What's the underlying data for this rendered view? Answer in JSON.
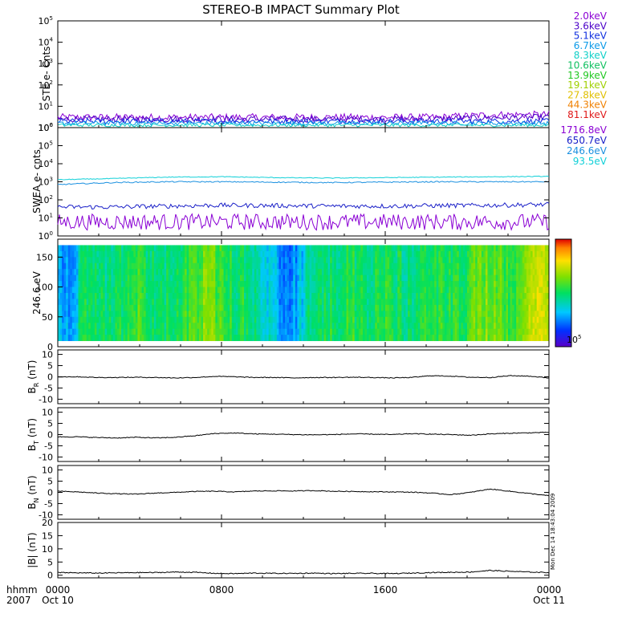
{
  "title": "STEREO-B IMPACT Summary Plot",
  "footer": {
    "hhmm_label": "hhmm",
    "year_label": "2007",
    "tick_times": [
      "0000",
      "0800",
      "1600",
      "0000"
    ],
    "tick_dates": [
      "Oct 10",
      "",
      "",
      "Oct 11"
    ]
  },
  "stamp": "Mon Dec 14 18:43:04 2009",
  "panels": {
    "ste": {
      "ylabel": "STE e- Cnts",
      "ticks": [
        {
          "base": "10",
          "exp": "0"
        },
        {
          "base": "10",
          "exp": "1"
        },
        {
          "base": "10",
          "exp": "2"
        },
        {
          "base": "10",
          "exp": "3"
        },
        {
          "base": "10",
          "exp": "4"
        },
        {
          "base": "10",
          "exp": "5"
        }
      ],
      "legend": [
        {
          "label": "2.0keV",
          "color": "#8a00d4"
        },
        {
          "label": "3.6keV",
          "color": "#4b00c8"
        },
        {
          "label": "5.1keV",
          "color": "#1030e0"
        },
        {
          "label": "6.7keV",
          "color": "#0b9ae8"
        },
        {
          "label": "8.3keV",
          "color": "#10d0c8"
        },
        {
          "label": "10.6keV",
          "color": "#10c060"
        },
        {
          "label": "13.9keV",
          "color": "#20c820"
        },
        {
          "label": "19.1keV",
          "color": "#a0d000"
        },
        {
          "label": "27.8keV",
          "color": "#e0c000"
        },
        {
          "label": "44.3keV",
          "color": "#f08000"
        },
        {
          "label": "81.1keV",
          "color": "#e01818"
        }
      ]
    },
    "swea": {
      "ylabel": "SWEA e- cnts",
      "ticks": [
        {
          "base": "10",
          "exp": "0"
        },
        {
          "base": "10",
          "exp": "1"
        },
        {
          "base": "10",
          "exp": "2"
        },
        {
          "base": "10",
          "exp": "3"
        },
        {
          "base": "10",
          "exp": "4"
        },
        {
          "base": "10",
          "exp": "5"
        },
        {
          "base": "10",
          "exp": "6"
        }
      ],
      "legend": [
        {
          "label": "1716.8eV",
          "color": "#8a00d4"
        },
        {
          "label": "650.7eV",
          "color": "#1a20c8"
        },
        {
          "label": "246.6eV",
          "color": "#1a90e0"
        },
        {
          "label": "93.5eV",
          "color": "#10d0d8"
        }
      ]
    },
    "pad": {
      "ylabel": "246.6 eV",
      "ticks": [
        "0",
        "50",
        "100",
        "150"
      ],
      "colorbar_label": {
        "base": "10",
        "exp": "5"
      }
    },
    "br": {
      "ylabel": {
        "main": "B",
        "sub": "R",
        "tail": " (nT)"
      },
      "ticks": [
        "-10",
        "-5",
        "0",
        "5",
        "10"
      ]
    },
    "bt": {
      "ylabel": {
        "main": "B",
        "sub": "T",
        "tail": " (nT)"
      },
      "ticks": [
        "-10",
        "-5",
        "0",
        "5",
        "10"
      ]
    },
    "bn": {
      "ylabel": {
        "main": "B",
        "sub": "N",
        "tail": " (nT)"
      },
      "ticks": [
        "-10",
        "-5",
        "0",
        "5",
        "10"
      ]
    },
    "bmag": {
      "ylabel": "|B| (nT)",
      "ticks": [
        "0",
        "5",
        "10",
        "15",
        "20"
      ]
    }
  },
  "chart_data": [
    {
      "type": "line",
      "name": "STE electron counts",
      "y_scale": "log",
      "ylim": [
        1,
        100000
      ],
      "x_range": [
        "2007-10-10 00:00",
        "2007-10-11 00:00"
      ],
      "series": [
        {
          "name": "2.0keV",
          "values": [
            3,
            3,
            3,
            3,
            3,
            3,
            3,
            3,
            4,
            4
          ]
        },
        {
          "name": "3.6keV",
          "values": [
            2.5,
            2.5,
            2.5,
            2.5,
            2.5,
            2.5,
            2.5,
            2.5,
            3,
            3
          ]
        },
        {
          "name": "5.1keV",
          "values": [
            2,
            2,
            2,
            2,
            2,
            2,
            2,
            2,
            2,
            2
          ]
        },
        {
          "name": "6.7keV",
          "values": [
            1.6,
            1.6,
            1.6,
            1.6,
            1.6,
            1.6,
            1.6,
            1.6,
            1.6,
            1.6
          ]
        },
        {
          "name": "8.3keV",
          "values": [
            1.3,
            1.3,
            1.3,
            1.3,
            1.3,
            1.3,
            1.3,
            1.3,
            1.3,
            1.3
          ]
        }
      ]
    },
    {
      "type": "line",
      "name": "SWEA electron counts",
      "y_scale": "log",
      "ylim": [
        1,
        1000000
      ],
      "x_range": [
        "2007-10-10 00:00",
        "2007-10-11 00:00"
      ],
      "series": [
        {
          "name": "1716.8eV",
          "values": [
            6,
            6,
            6,
            6,
            6,
            6,
            6,
            6,
            6,
            6
          ]
        },
        {
          "name": "650.7eV",
          "values": [
            40,
            40,
            45,
            50,
            48,
            45,
            45,
            48,
            50,
            55
          ]
        },
        {
          "name": "246.6eV",
          "values": [
            700,
            900,
            1000,
            1000,
            950,
            900,
            950,
            1000,
            1000,
            1000
          ]
        },
        {
          "name": "93.5eV",
          "values": [
            1300,
            1500,
            1800,
            1900,
            1700,
            1600,
            1700,
            1800,
            1900,
            2000
          ]
        }
      ]
    },
    {
      "type": "heatmap",
      "name": "246.6 eV pitch angle distribution",
      "ylim": [
        0,
        180
      ],
      "y_data_range": [
        10,
        170
      ],
      "x_range": [
        "2007-10-10 00:00",
        "2007-10-11 00:00"
      ],
      "colorbar_label": "10^5",
      "time_profile": [
        0.3,
        0.25,
        0.5,
        0.5,
        0.45,
        0.5,
        0.6,
        0.5,
        0.45,
        0.5,
        0.55,
        0.6,
        0.65,
        0.55,
        0.5,
        0.5,
        0.4,
        0.35,
        0.2,
        0.3,
        0.45,
        0.5,
        0.5,
        0.55,
        0.5,
        0.5,
        0.55,
        0.5,
        0.45,
        0.5,
        0.5,
        0.55,
        0.5,
        0.6,
        0.65,
        0.6,
        0.55,
        0.7,
        0.75,
        0.7
      ]
    },
    {
      "type": "line",
      "name": "B_R",
      "ylim": [
        -12,
        12
      ],
      "x_range": [
        "2007-10-10 00:00",
        "2007-10-11 00:00"
      ],
      "values": [
        0,
        0,
        -0.3,
        -0.3,
        -0.2,
        -0.3,
        -0.5,
        -0.3,
        0.2,
        0,
        -0.3,
        -0.3,
        -0.5,
        -0.3,
        -0.3,
        -0.2,
        -0.3,
        -0.5,
        -0.3,
        0.5,
        0.3,
        -0.2,
        -0.3,
        0.5,
        0.3,
        -0.5
      ]
    },
    {
      "type": "line",
      "name": "B_T",
      "ylim": [
        -12,
        12
      ],
      "x_range": [
        "2007-10-10 00:00",
        "2007-10-11 00:00"
      ],
      "values": [
        -1,
        -1,
        -1.3,
        -1.5,
        -1.2,
        -1.5,
        -1.2,
        -0.5,
        0.5,
        0.7,
        0.3,
        0.2,
        0,
        -0.1,
        0,
        0.3,
        0.2,
        0,
        0.4,
        0.2,
        0,
        -0.3,
        0.3,
        0.6,
        0.8,
        1
      ]
    },
    {
      "type": "line",
      "name": "B_N",
      "ylim": [
        -12,
        12
      ],
      "x_range": [
        "2007-10-10 00:00",
        "2007-10-11 00:00"
      ],
      "values": [
        0.5,
        0.2,
        -0.3,
        -0.6,
        -0.8,
        -0.3,
        0,
        0.4,
        0.5,
        0.2,
        0.6,
        0.7,
        0.6,
        0.8,
        0.5,
        0.4,
        0.3,
        0.2,
        0.1,
        -0.3,
        -1,
        0,
        1.5,
        0.5,
        -0.5,
        -1.5
      ]
    },
    {
      "type": "line",
      "name": "|B|",
      "ylim": [
        -1,
        20
      ],
      "x_range": [
        "2007-10-10 00:00",
        "2007-10-11 00:00"
      ],
      "values": [
        1,
        0.9,
        0.8,
        0.9,
        1,
        1,
        1.2,
        1.1,
        0.7,
        0.6,
        0.8,
        0.7,
        0.7,
        0.8,
        0.6,
        0.7,
        0.7,
        0.6,
        0.8,
        1,
        1.1,
        1.2,
        1.8,
        1.5,
        1.2,
        1
      ]
    }
  ]
}
